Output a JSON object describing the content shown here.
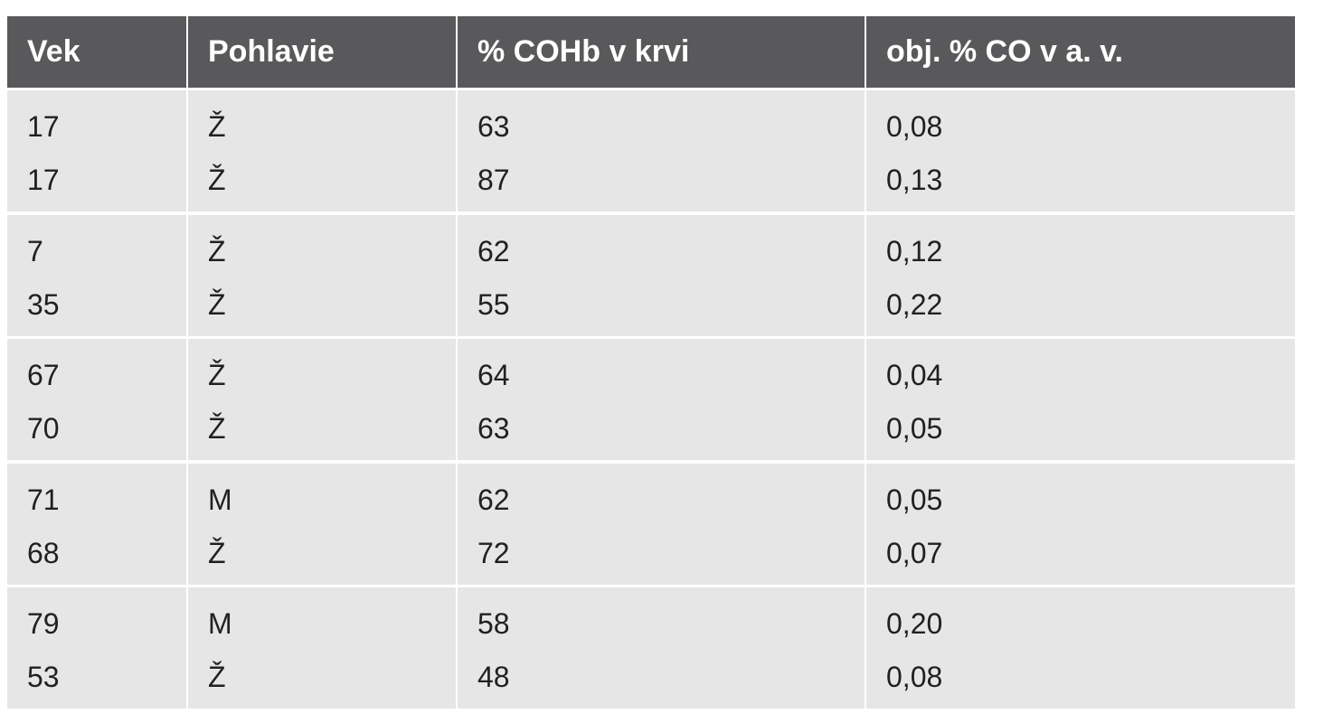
{
  "table": {
    "header": [
      "Vek",
      "Pohlavie",
      "% COHb v krvi",
      "obj. % CO v a. v."
    ],
    "rows": [
      [
        [
          "17",
          "17"
        ],
        [
          "Ž",
          "Ž"
        ],
        [
          "63",
          "87"
        ],
        [
          "0,08",
          "0,13"
        ]
      ],
      [
        [
          "7",
          "35"
        ],
        [
          "Ž",
          "Ž"
        ],
        [
          "62",
          "55"
        ],
        [
          "0,12",
          "0,22"
        ]
      ],
      [
        [
          "67",
          "70"
        ],
        [
          "Ž",
          "Ž"
        ],
        [
          "64",
          "63"
        ],
        [
          "0,04",
          "0,05"
        ]
      ],
      [
        [
          "71",
          "68"
        ],
        [
          "M",
          "Ž"
        ],
        [
          "62",
          "72"
        ],
        [
          "0,05",
          "0,07"
        ]
      ],
      [
        [
          "79",
          "53"
        ],
        [
          "M",
          "Ž"
        ],
        [
          "58",
          "48"
        ],
        [
          "0,20",
          "0,08"
        ]
      ]
    ]
  }
}
